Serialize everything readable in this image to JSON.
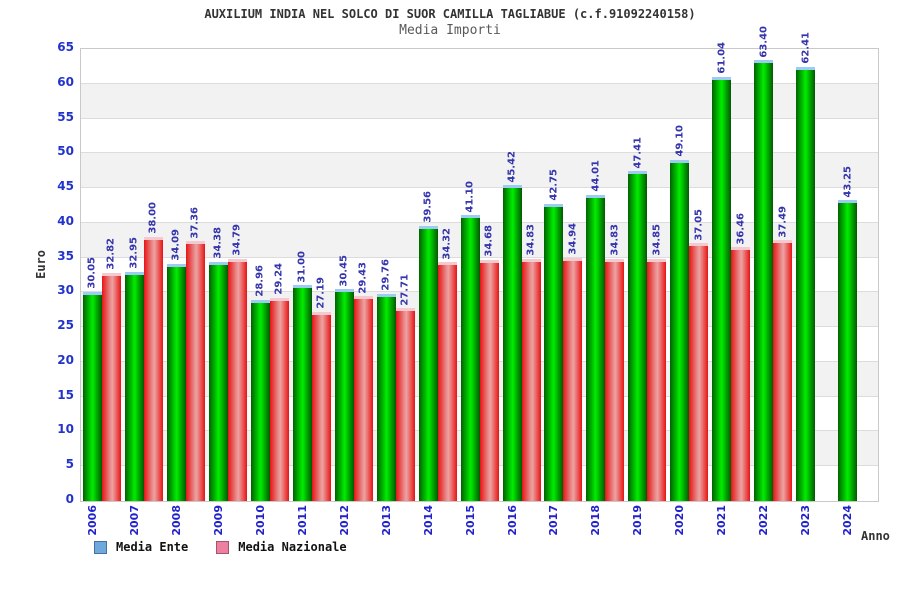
{
  "title": "AUXILIUM INDIA NEL SOLCO DI SUOR CAMILLA TAGLIABUE (c.f.91092240158)",
  "subtitle": "Media Importi",
  "chart_data": {
    "type": "bar",
    "title": "AUXILIUM INDIA NEL SOLCO DI SUOR CAMILLA TAGLIABUE (c.f.91092240158)",
    "subtitle": "Media Importi",
    "xlabel": "Anno",
    "ylabel": "Euro",
    "ylim": [
      0,
      65
    ],
    "yticks": [
      0,
      5,
      10,
      15,
      20,
      25,
      30,
      35,
      40,
      45,
      50,
      55,
      60,
      65
    ],
    "grid": "horizontal gridlines every 5 with alternating shaded bands",
    "legend_position": "bottom-left",
    "value_labels": "rotated 90deg above each bar",
    "categories": [
      "2006",
      "2007",
      "2008",
      "2009",
      "2010",
      "2011",
      "2012",
      "2013",
      "2014",
      "2015",
      "2016",
      "2017",
      "2018",
      "2019",
      "2020",
      "2021",
      "2022",
      "2023",
      "2024"
    ],
    "series": [
      {
        "name": "Media Ente",
        "legend_color": "#6fa8dc",
        "legend_border": "#4a6e9e",
        "bar_style": "green cylinder gradient with light blue cap",
        "values": [
          30.05,
          32.95,
          34.09,
          34.38,
          28.96,
          31.0,
          30.45,
          29.76,
          39.56,
          41.1,
          45.42,
          42.75,
          44.01,
          47.41,
          49.1,
          61.04,
          63.4,
          62.41,
          43.25
        ],
        "labels": [
          "30.05",
          "32.95",
          "34.09",
          "34.38",
          "28.96",
          "31.00",
          "30.45",
          "29.76",
          "39.56",
          "41.10",
          "45.42",
          "42.75",
          "44.01",
          "47.41",
          "49.10",
          "61.04",
          "63.40",
          "62.41",
          "43.25"
        ]
      },
      {
        "name": "Media Nazionale",
        "legend_color": "#ee7fa0",
        "legend_border": "#a05570",
        "bar_style": "red cylinder gradient with light pink cap",
        "values": [
          32.82,
          38.0,
          37.36,
          34.79,
          29.24,
          27.19,
          29.43,
          27.71,
          34.32,
          34.68,
          34.83,
          34.94,
          34.83,
          34.85,
          37.05,
          36.46,
          37.49,
          null,
          null
        ],
        "labels": [
          "32.82",
          "38.00",
          "37.36",
          "34.79",
          "29.24",
          "27.19",
          "29.43",
          "27.71",
          "34.32",
          "34.68",
          "34.83",
          "34.94",
          "34.83",
          "34.85",
          "37.05",
          "36.46",
          "37.49",
          null,
          null
        ]
      }
    ]
  },
  "colors": {
    "tick_label_blue": "#2222cc",
    "value_label_navy": "#3434ac",
    "shaded_band": "#f2f2f2",
    "gridline": "#dcdcdc",
    "plot_border": "#c9c9c9",
    "title_text": "#333333",
    "subtitle_text": "#595959"
  }
}
